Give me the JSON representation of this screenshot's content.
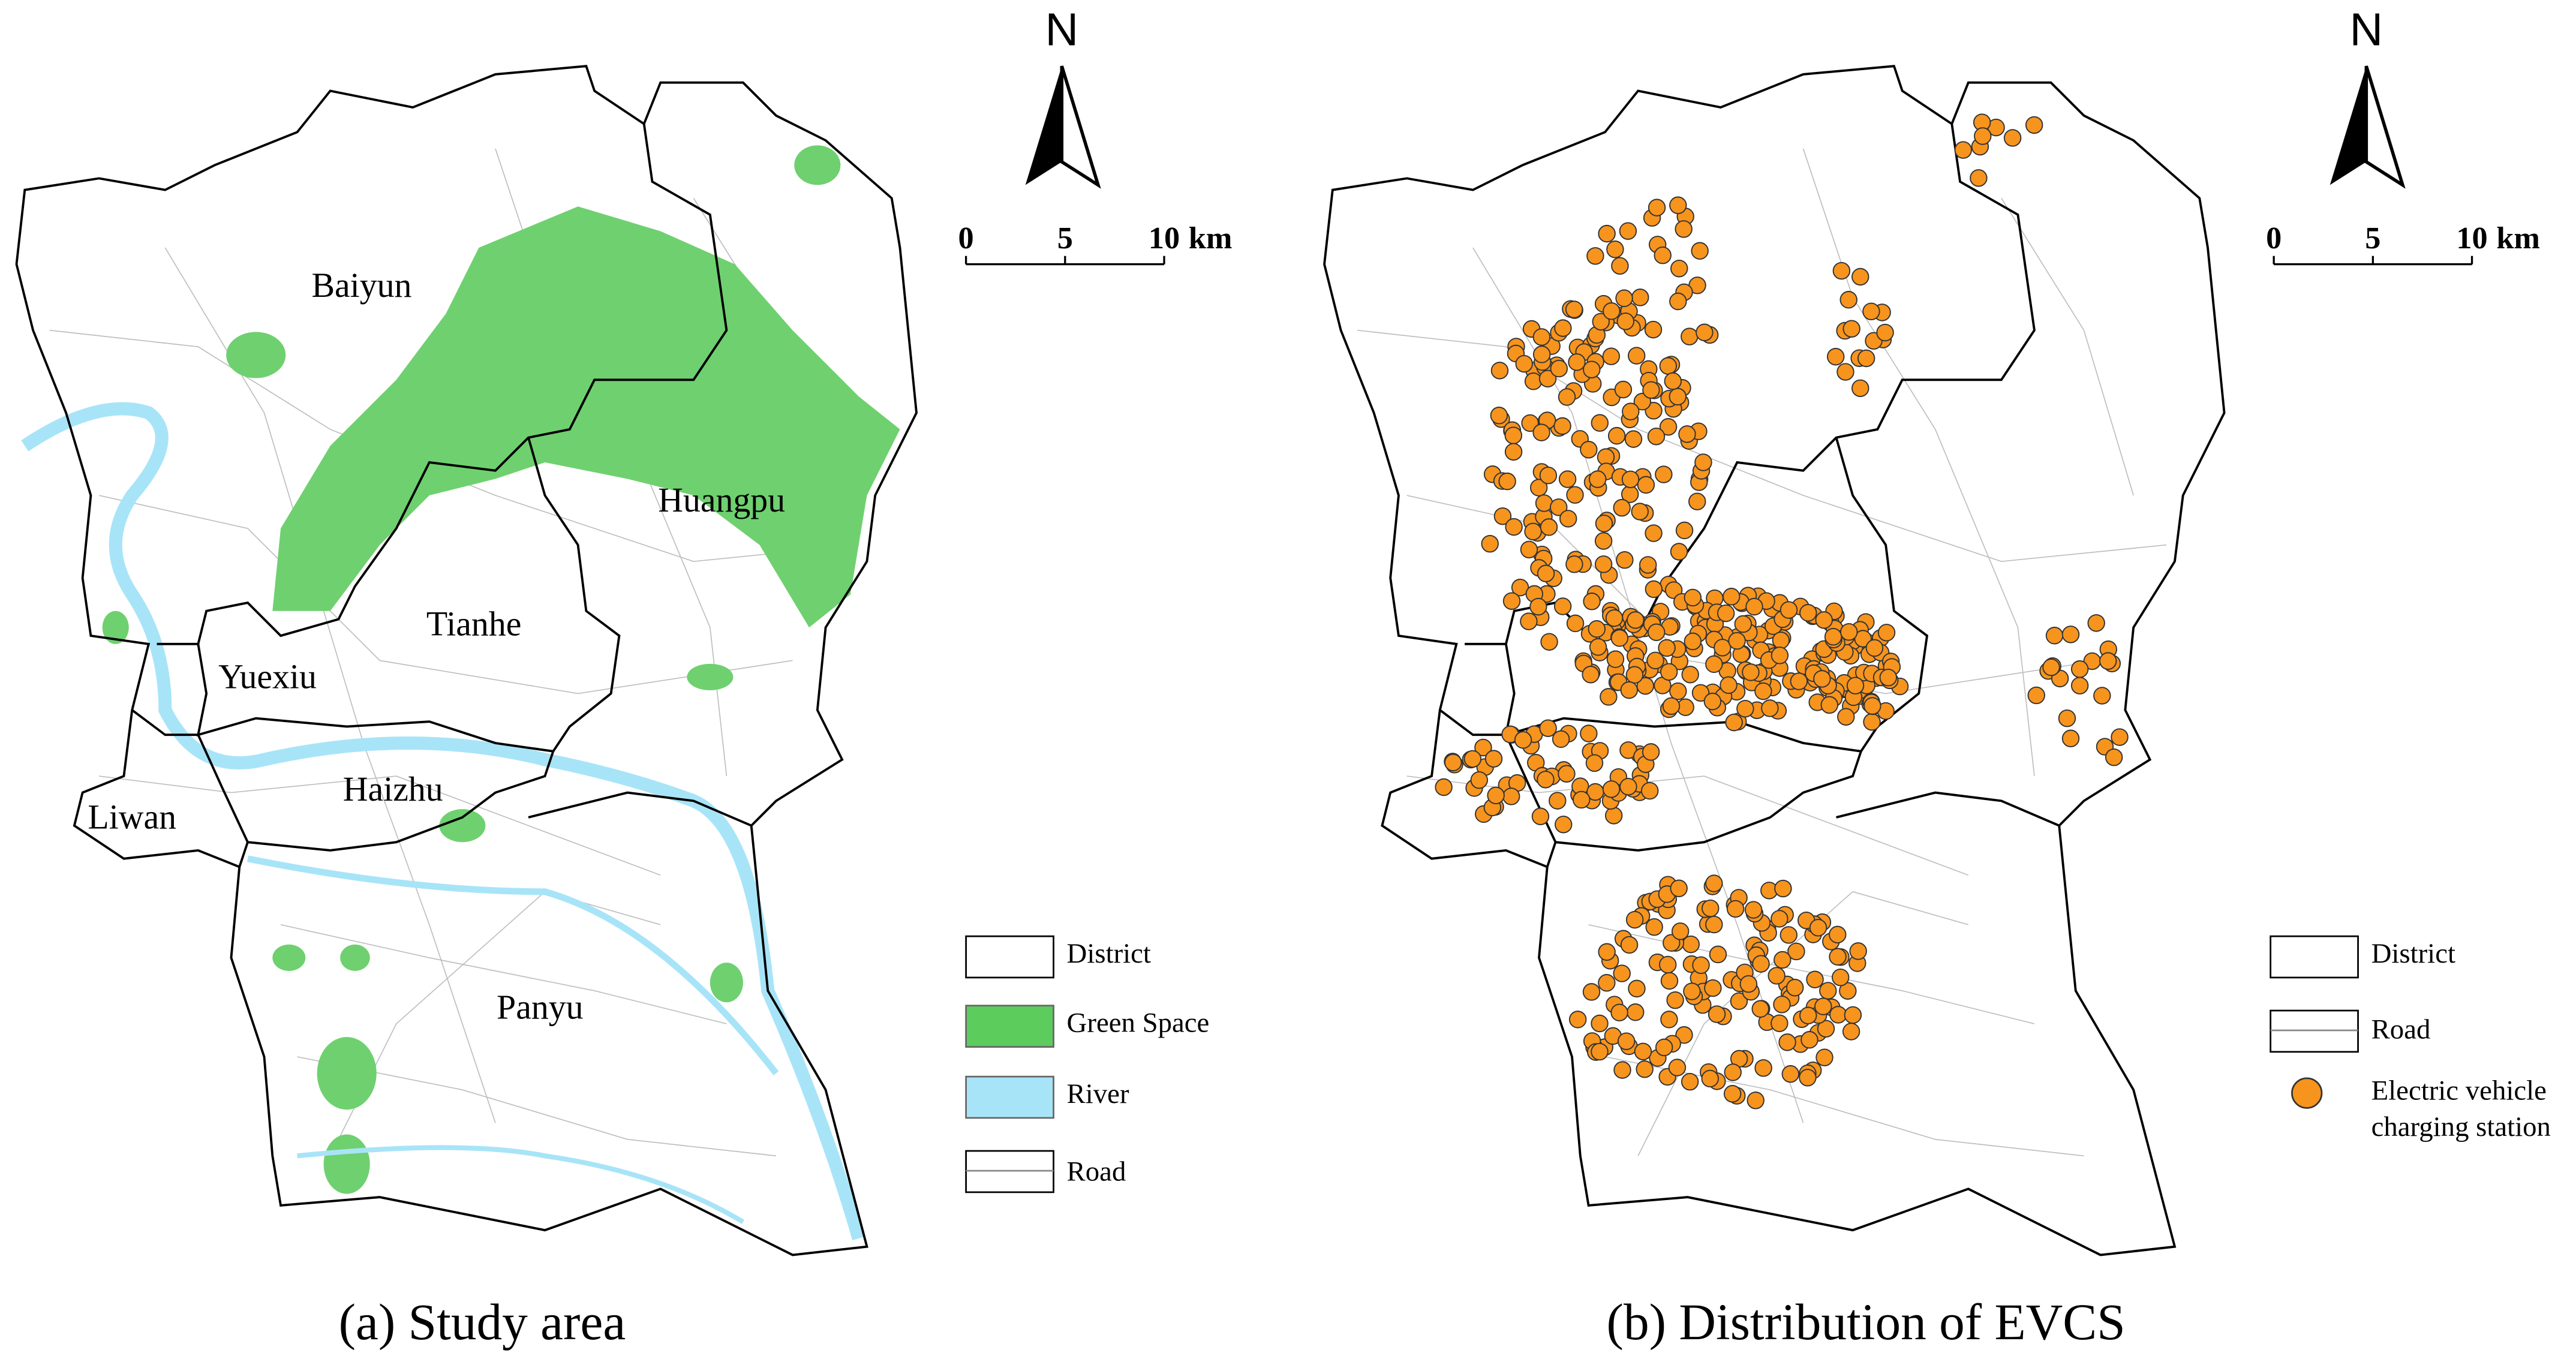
{
  "panels": [
    {
      "caption": "(a) Study area",
      "districts": [
        "Baiyun",
        "Huangpu",
        "Tianhe",
        "Yuexiu",
        "Haizhu",
        "Liwan",
        "Panyu"
      ],
      "north": "N",
      "scale_bar": {
        "ticks": [
          "0",
          "5",
          "10"
        ],
        "unit": "km"
      },
      "legend": [
        "District",
        "Green Space",
        "River",
        "Road"
      ]
    },
    {
      "caption": "(b) Distribution of EVCS",
      "north": "N",
      "scale_bar": {
        "ticks": [
          "0",
          "5",
          "10"
        ],
        "unit": "km"
      },
      "legend": [
        "District",
        "Road",
        "Electric vehicle charging station"
      ]
    }
  ]
}
